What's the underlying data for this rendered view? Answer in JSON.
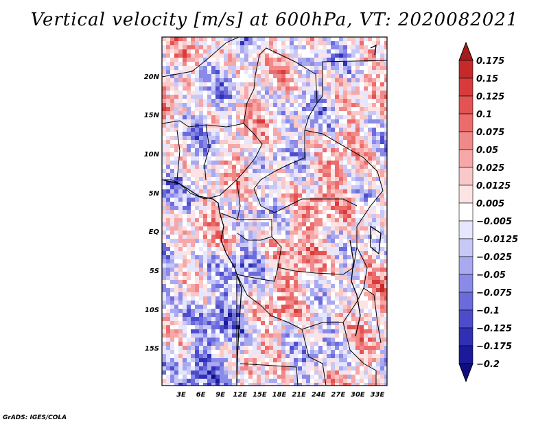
{
  "title": "Vertical velocity [m/s] at 600hPa, VT: 2020082021",
  "footer": "GrADS: IGES/COLA",
  "map": {
    "lat_labels": [
      "20N",
      "15N",
      "10N",
      "5N",
      "EQ",
      "5S",
      "10S",
      "15S"
    ],
    "lon_labels": [
      "3E",
      "6E",
      "9E",
      "12E",
      "15E",
      "18E",
      "21E",
      "24E",
      "27E",
      "30E",
      "33E"
    ]
  },
  "colorbar": {
    "labels": [
      "0.175",
      "0.15",
      "0.125",
      "0.1",
      "0.075",
      "0.05",
      "0.025",
      "0.0125",
      "0.005",
      "−0.005",
      "−0.0125",
      "−0.025",
      "−0.05",
      "−0.075",
      "−0.1",
      "−0.125",
      "−0.175",
      "−0.2"
    ],
    "colors": [
      "#a51c1c",
      "#c42a2a",
      "#d83b3b",
      "#e45252",
      "#ec6c6c",
      "#f08a8a",
      "#f6a8a8",
      "#f9c8c8",
      "#fde4e4",
      "#ffffff",
      "#e6e6ff",
      "#c8c8f6",
      "#a9a9f0",
      "#8a8ae8",
      "#6b6bdc",
      "#4d4dcc",
      "#3030b5",
      "#1a1a9a",
      "#0e0e80"
    ]
  }
}
